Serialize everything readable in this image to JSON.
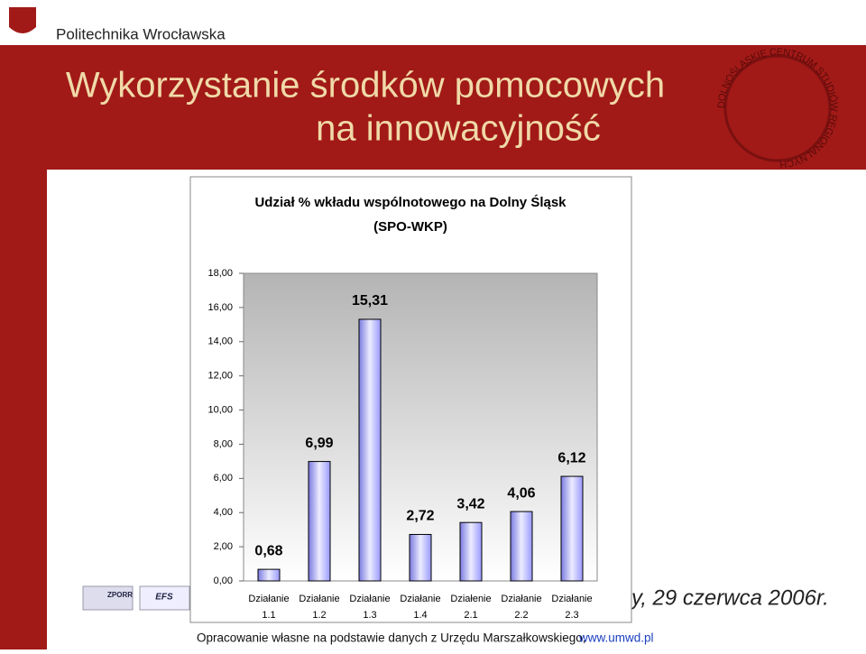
{
  "slide": {
    "university": "Politechnika Wrocławska",
    "title_lines": [
      "Wykorzystanie środków pomocowych",
      "na innowacyjność"
    ],
    "logo_text": "DOLNOŚLĄSKIE CENTRUM STUDIÓW REGIONALNYCH",
    "logos": [
      "ZPORR",
      "EFS"
    ],
    "date": "y, 29 czerwca 2006r.",
    "source": "Opracowanie własne na podstawie danych z Urzędu Marszałkowskiego,",
    "source_link": "www.umwd.pl"
  },
  "chart_data": {
    "type": "bar",
    "title_lines": [
      "Udział % wkładu wspólnotowego na Dolny Śląsk",
      "(SPO-WKP)"
    ],
    "categories": [
      "Działanie 1.1",
      "Działanie 1.2",
      "Działanie 1.3",
      "Działanie 1.4",
      "Działenie 2.1",
      "Działanie 2.2",
      "Działanie 2.3"
    ],
    "values": [
      0.68,
      6.99,
      15.31,
      2.72,
      3.42,
      4.06,
      6.12
    ],
    "value_labels": [
      "0,68",
      "6,99",
      "15,31",
      "2,72",
      "3,42",
      "4,06",
      "6,12"
    ],
    "color": "#9999ff",
    "ylim": [
      0,
      18
    ],
    "yticks": [
      {
        "value": 0,
        "label": "0,00"
      },
      {
        "value": 2,
        "label": "2,00"
      },
      {
        "value": 4,
        "label": "4,00"
      },
      {
        "value": 6,
        "label": "6,00"
      },
      {
        "value": 8,
        "label": "8,00"
      },
      {
        "value": 10,
        "label": "10,00"
      },
      {
        "value": 12,
        "label": "12,00"
      },
      {
        "value": 14,
        "label": "14,00"
      },
      {
        "value": 16,
        "label": "16,00"
      },
      {
        "value": 18,
        "label": "18,00"
      }
    ],
    "grid": false
  }
}
